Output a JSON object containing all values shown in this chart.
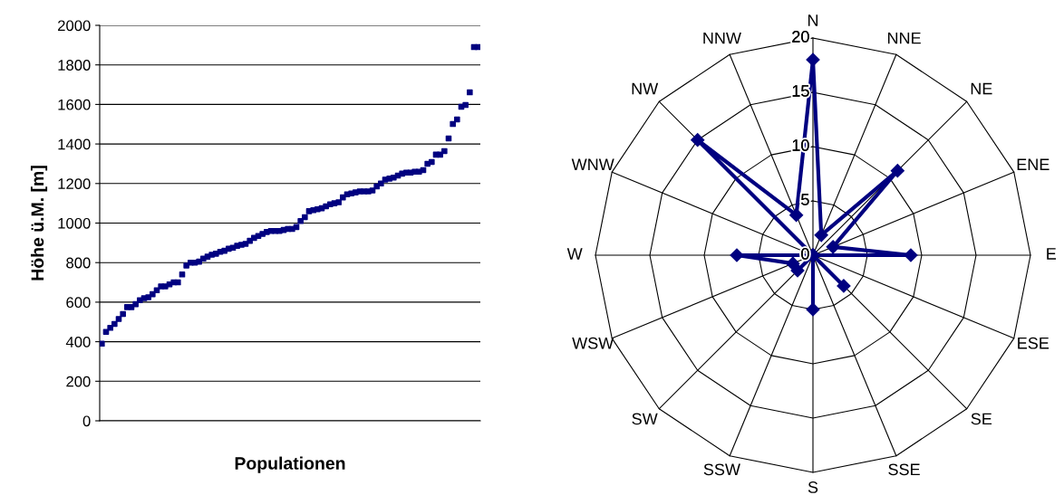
{
  "chart_data": [
    {
      "type": "scatter",
      "xlabel": "Populationen",
      "ylabel": "Höhe ü.M. [m]",
      "ylim": [
        0,
        2000
      ],
      "yticks": [
        0,
        200,
        400,
        600,
        800,
        1000,
        1200,
        1400,
        1600,
        1800,
        2000
      ],
      "grid": "y",
      "marker": "square",
      "legend": false,
      "categories": [
        null,
        null,
        null,
        null,
        null,
        null,
        null,
        null,
        null,
        null,
        null,
        null,
        null,
        null,
        null,
        null,
        null,
        null,
        null,
        null,
        null,
        null,
        null,
        null,
        null,
        null,
        null,
        null,
        null,
        null,
        null,
        null,
        null,
        null,
        null,
        null,
        null,
        null,
        null,
        null,
        null,
        null,
        null,
        null,
        null,
        null,
        null,
        null,
        null,
        null,
        null,
        null,
        null,
        null,
        null,
        null,
        null,
        null,
        null,
        null,
        null,
        null,
        null,
        null,
        null,
        null,
        null,
        null,
        null,
        null,
        null,
        null,
        null,
        null,
        null,
        null,
        null,
        null,
        null,
        null,
        null,
        null,
        null,
        null,
        null,
        null,
        null,
        null,
        null,
        null
      ],
      "series": [
        {
          "color": "#000080",
          "values": [
            390,
            450,
            470,
            490,
            515,
            540,
            575,
            575,
            590,
            610,
            620,
            625,
            640,
            660,
            680,
            680,
            690,
            700,
            700,
            740,
            785,
            800,
            800,
            805,
            820,
            830,
            840,
            845,
            855,
            860,
            870,
            875,
            885,
            890,
            895,
            910,
            925,
            935,
            945,
            955,
            960,
            960,
            960,
            965,
            970,
            970,
            980,
            1010,
            1030,
            1060,
            1065,
            1070,
            1075,
            1085,
            1095,
            1100,
            1105,
            1130,
            1145,
            1150,
            1155,
            1160,
            1160,
            1160,
            1165,
            1185,
            1200,
            1220,
            1225,
            1230,
            1240,
            1250,
            1255,
            1255,
            1260,
            1260,
            1268,
            1300,
            1309,
            1346,
            1346,
            1364,
            1428,
            1501,
            1524,
            1588,
            1597,
            1661,
            1890,
            1890
          ]
        }
      ]
    },
    {
      "type": "radar",
      "categories": [
        "N",
        "NNE",
        "NE",
        "ENE",
        "E",
        "ESE",
        "SE",
        "SSE",
        "S",
        "SSW",
        "SW",
        "WSW",
        "W",
        "WNW",
        "NW",
        "NNW"
      ],
      "ylim": [
        0,
        20
      ],
      "yticks": [
        0,
        5,
        10,
        15,
        20
      ],
      "marker": "diamond",
      "line_style": "solid",
      "legend": false,
      "series": [
        {
          "color": "#000080",
          "values": [
            18,
            2,
            11,
            2,
            9,
            0,
            4,
            0,
            5,
            0,
            2,
            2,
            7,
            0,
            15,
            4
          ]
        }
      ]
    }
  ]
}
